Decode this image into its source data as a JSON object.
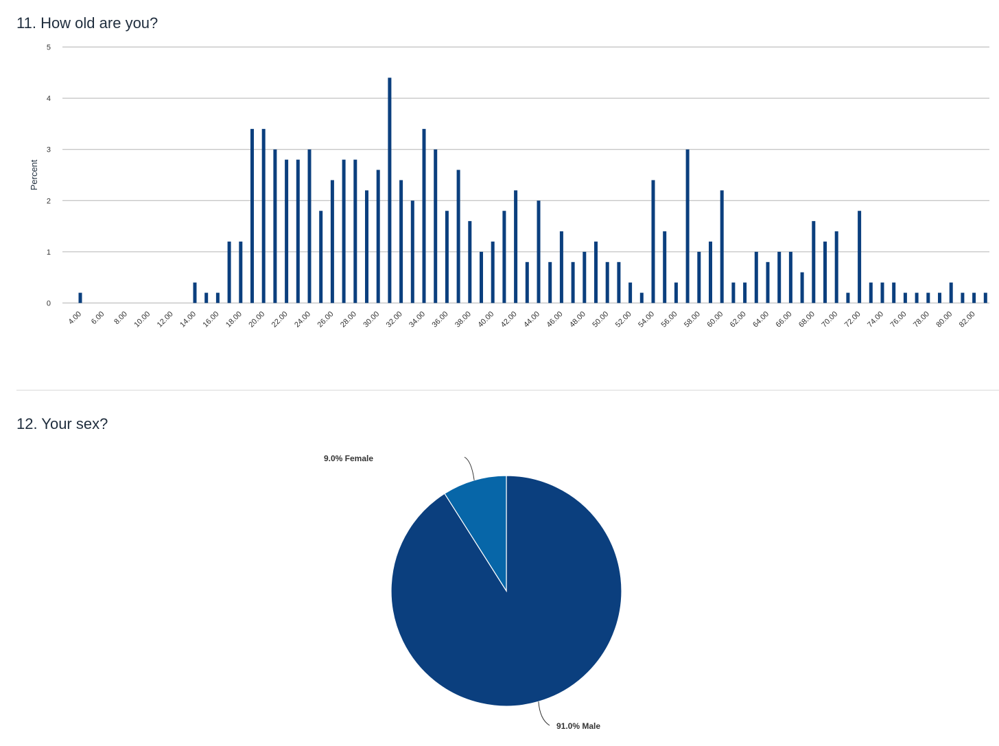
{
  "questions": [
    {
      "title": "11. How old are you?"
    },
    {
      "title": "12. Your sex?"
    }
  ],
  "colors": {
    "bar": "#0b3f7e",
    "male": "#0b3f7e",
    "female": "#0766a8",
    "grid": "#b3b3b3"
  },
  "chart_data": [
    {
      "type": "bar",
      "title": "11. How old are you?",
      "xlabel": "",
      "ylabel": "Percent",
      "ylim": [
        0,
        5
      ],
      "yticks": [
        0,
        1,
        2,
        3,
        4,
        5
      ],
      "grid": true,
      "x_range": [
        4,
        83
      ],
      "xtick_labels": [
        "4.00",
        "6.00",
        "8.00",
        "10.00",
        "12.00",
        "14.00",
        "16.00",
        "18.00",
        "20.00",
        "22.00",
        "24.00",
        "26.00",
        "28.00",
        "30.00",
        "32.00",
        "34.00",
        "36.00",
        "38.00",
        "40.00",
        "42.00",
        "44.00",
        "46.00",
        "48.00",
        "50.00",
        "52.00",
        "54.00",
        "56.00",
        "58.00",
        "60.00",
        "62.00",
        "64.00",
        "66.00",
        "68.00",
        "70.00",
        "72.00",
        "74.00",
        "76.00",
        "78.00",
        "80.00",
        "82.00"
      ],
      "x": [
        4,
        14,
        15,
        16,
        17,
        18,
        19,
        20,
        21,
        22,
        23,
        24,
        25,
        26,
        27,
        28,
        29,
        30,
        31,
        32,
        33,
        34,
        35,
        36,
        37,
        38,
        39,
        40,
        41,
        42,
        43,
        44,
        45,
        46,
        47,
        48,
        49,
        50,
        51,
        52,
        53,
        54,
        55,
        56,
        57,
        58,
        59,
        60,
        61,
        62,
        63,
        64,
        65,
        66,
        67,
        68,
        69,
        70,
        71,
        72,
        73,
        74,
        75,
        76,
        77,
        78,
        79,
        80,
        81,
        82,
        83
      ],
      "values": [
        0.2,
        0.4,
        0.2,
        0.2,
        1.2,
        1.2,
        3.4,
        3.4,
        3.0,
        2.8,
        2.8,
        3.0,
        1.8,
        2.4,
        2.8,
        2.8,
        2.2,
        2.6,
        4.4,
        2.4,
        2.0,
        3.4,
        3.0,
        1.8,
        2.6,
        1.6,
        1.0,
        1.2,
        1.8,
        2.2,
        0.8,
        2.0,
        0.8,
        1.4,
        0.8,
        1.0,
        1.2,
        0.8,
        0.8,
        0.4,
        0.2,
        2.4,
        1.4,
        0.4,
        3.0,
        1.0,
        1.2,
        2.2,
        0.4,
        0.4,
        1.0,
        0.8,
        1.0,
        1.0,
        0.6,
        1.6,
        1.2,
        1.4,
        0.2,
        1.8,
        0.4,
        0.4,
        0.4,
        0.2,
        0.2,
        0.2,
        0.2,
        0.4,
        0.2,
        0.2,
        0.2
      ]
    },
    {
      "type": "pie",
      "title": "12. Your sex?",
      "slices": [
        {
          "label": "Male",
          "value": 91.0,
          "text": "91.0% Male"
        },
        {
          "label": "Female",
          "value": 9.0,
          "text": "9.0% Female"
        }
      ]
    }
  ]
}
